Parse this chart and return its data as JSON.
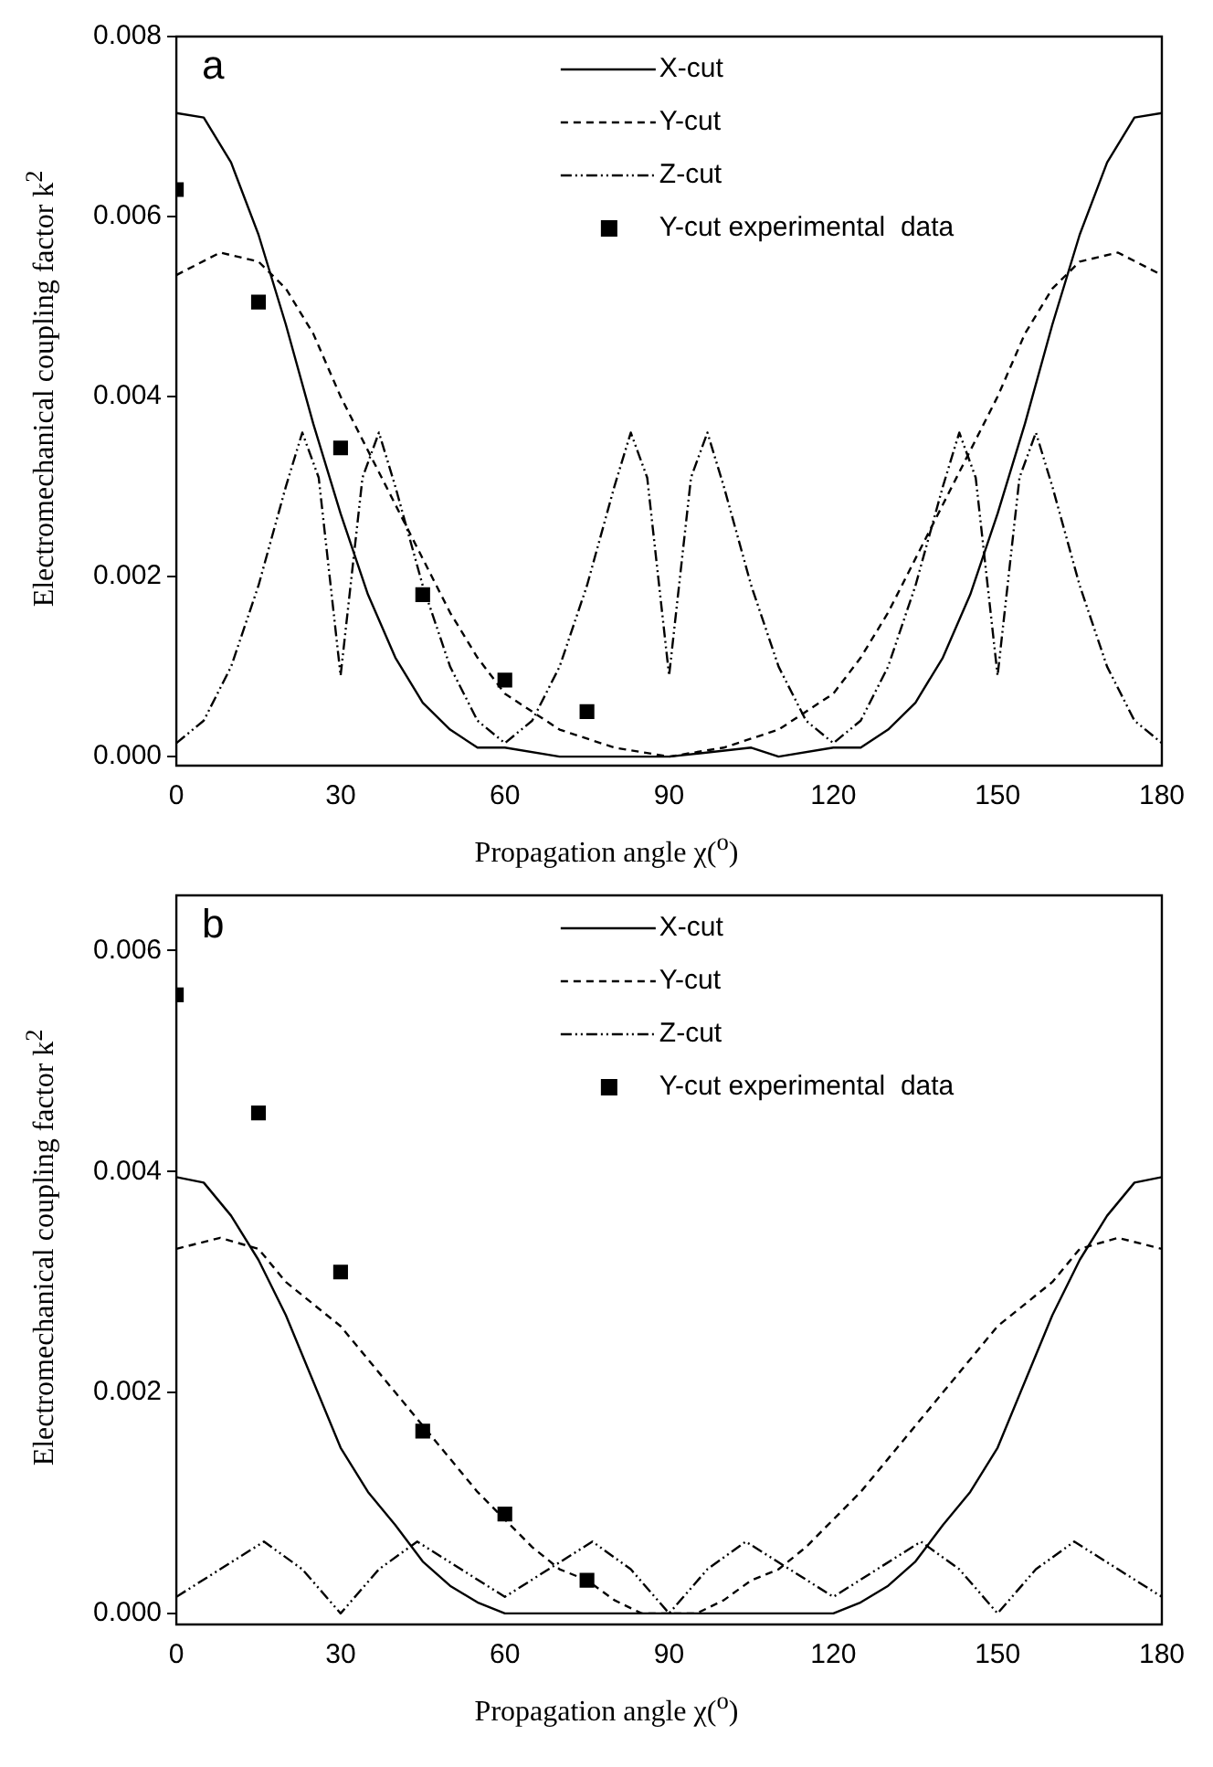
{
  "chart_data": [
    {
      "type": "line",
      "annotations": [
        "a"
      ],
      "xlabel": "Propagation angle χ($^{o}$)",
      "ylabel": "Electromechanical coupling factor  k$^{2}$",
      "xlim": [
        0,
        180
      ],
      "xticks": [
        0,
        30,
        60,
        90,
        120,
        150,
        180
      ],
      "ylim": [
        -0.0001,
        0.008
      ],
      "yticks": [
        {
          "value": 0,
          "label": "0.000"
        },
        {
          "value": 0.002,
          "label": "0.002"
        },
        {
          "value": 0.004,
          "label": "0.004"
        },
        {
          "value": 0.006,
          "label": "0.006"
        },
        {
          "value": 0.008,
          "label": "0.008"
        }
      ],
      "grid": false,
      "legend": "top",
      "series": [
        {
          "name": "X-cut",
          "line_style": "solid",
          "color": "#000000",
          "x": [
            0,
            5,
            10,
            15,
            20,
            25,
            30,
            35,
            40,
            45,
            50,
            55,
            60,
            70,
            90,
            105,
            110,
            120,
            125,
            130,
            135,
            140,
            145,
            150,
            155,
            160,
            165,
            170,
            175,
            180
          ],
          "values": [
            0.00715,
            0.0071,
            0.0066,
            0.0058,
            0.0048,
            0.0037,
            0.0027,
            0.0018,
            0.0011,
            0.0006,
            0.0003,
            0.0001,
            0.0001,
            0,
            0,
            0.0001,
            0,
            0.0001,
            0.0001,
            0.0003,
            0.0006,
            0.0011,
            0.0018,
            0.0027,
            0.0037,
            0.0048,
            0.0058,
            0.0066,
            0.0071,
            0.00715
          ]
        },
        {
          "name": "Y-cut",
          "line_style": "dashed",
          "color": "#000000",
          "x": [
            0,
            8,
            15,
            20,
            25,
            30,
            35,
            40,
            45,
            50,
            55,
            60,
            70,
            80,
            90,
            100,
            110,
            120,
            125,
            130,
            135,
            140,
            145,
            150,
            155,
            160,
            165,
            172,
            180
          ],
          "values": [
            0.00535,
            0.0056,
            0.0055,
            0.0052,
            0.0047,
            0.004,
            0.0034,
            0.0028,
            0.0022,
            0.0016,
            0.0011,
            0.0007,
            0.0003,
            0.0001,
            0,
            0.0001,
            0.0003,
            0.0007,
            0.0011,
            0.0016,
            0.0022,
            0.0028,
            0.0034,
            0.004,
            0.0047,
            0.0052,
            0.0055,
            0.0056,
            0.00535
          ]
        },
        {
          "name": "Z-cut",
          "line_style": "dashdotdot",
          "color": "#000000",
          "x": [
            0,
            5,
            10,
            15,
            20,
            23,
            26,
            28,
            30,
            32,
            34,
            37,
            40,
            45,
            50,
            55,
            60,
            65,
            70,
            75,
            80,
            83,
            86,
            88,
            90,
            92,
            94,
            97,
            100,
            105,
            110,
            115,
            120,
            125,
            130,
            135,
            140,
            143,
            146,
            148,
            150,
            152,
            154,
            157,
            160,
            165,
            170,
            175,
            180
          ],
          "values": [
            0.00015,
            0.0004,
            0.001,
            0.0019,
            0.003,
            0.0036,
            0.0031,
            0.002,
            0.0009,
            0.002,
            0.0031,
            0.0036,
            0.003,
            0.0019,
            0.001,
            0.0004,
            0.00015,
            0.0004,
            0.001,
            0.0019,
            0.003,
            0.0036,
            0.0031,
            0.002,
            0.0009,
            0.002,
            0.0031,
            0.0036,
            0.003,
            0.0019,
            0.001,
            0.0004,
            0.00015,
            0.0004,
            0.001,
            0.0019,
            0.003,
            0.0036,
            0.0031,
            0.002,
            0.0009,
            0.002,
            0.0031,
            0.0036,
            0.003,
            0.0019,
            0.001,
            0.0004,
            0.00015
          ]
        },
        {
          "name": "Y-cut experimental  data",
          "type": "scatter",
          "marker": "square",
          "color": "#000000",
          "x": [
            0,
            15,
            30,
            45,
            60,
            75
          ],
          "values": [
            0.0063,
            0.00505,
            0.00343,
            0.0018,
            0.00085,
            0.0005
          ]
        }
      ]
    },
    {
      "type": "line",
      "annotations": [
        "b"
      ],
      "xlabel": "Propagation angle χ($^{o}$)",
      "ylabel": "Electromechanical coupling factor  k$^{2}$",
      "xlim": [
        0,
        180
      ],
      "xticks": [
        0,
        30,
        60,
        90,
        120,
        150,
        180
      ],
      "ylim": [
        -0.0001,
        0.0065
      ],
      "yticks": [
        {
          "value": 0,
          "label": "0.000"
        },
        {
          "value": 0.002,
          "label": "0.002"
        },
        {
          "value": 0.004,
          "label": "0.004"
        },
        {
          "value": 0.006,
          "label": "0.006"
        }
      ],
      "grid": false,
      "legend": "top",
      "series": [
        {
          "name": "X-cut",
          "line_style": "solid",
          "color": "#000000",
          "x": [
            0,
            5,
            10,
            15,
            20,
            25,
            30,
            35,
            40,
            45,
            50,
            55,
            60,
            70,
            90,
            110,
            120,
            125,
            130,
            135,
            140,
            145,
            150,
            155,
            160,
            165,
            170,
            175,
            180
          ],
          "values": [
            0.00395,
            0.0039,
            0.0036,
            0.0032,
            0.0027,
            0.0021,
            0.0015,
            0.0011,
            0.0008,
            0.00047,
            0.00025,
            0.0001,
            0,
            0,
            0,
            0,
            0,
            0.0001,
            0.00025,
            0.00047,
            0.0008,
            0.0011,
            0.0015,
            0.0021,
            0.0027,
            0.0032,
            0.0036,
            0.0039,
            0.00395
          ]
        },
        {
          "name": "Y-cut",
          "line_style": "dashed",
          "color": "#000000",
          "x": [
            0,
            8,
            15,
            20,
            30,
            40,
            45,
            50,
            55,
            60,
            65,
            70,
            75,
            80,
            85,
            90,
            95,
            100,
            105,
            110,
            115,
            120,
            125,
            130,
            135,
            140,
            150,
            160,
            165,
            172,
            180
          ],
          "values": [
            0.0033,
            0.0034,
            0.0033,
            0.003,
            0.0026,
            0.002,
            0.0017,
            0.0014,
            0.0011,
            0.00085,
            0.0006,
            0.0004,
            0.0003,
            0.00012,
            0,
            0,
            0,
            0.00012,
            0.0003,
            0.0004,
            0.0006,
            0.00085,
            0.0011,
            0.0014,
            0.0017,
            0.002,
            0.0026,
            0.003,
            0.0033,
            0.0034,
            0.0033
          ]
        },
        {
          "name": "Z-cut",
          "line_style": "dashdotdot",
          "color": "#000000",
          "x": [
            0,
            8,
            16,
            23,
            30,
            37,
            44,
            52,
            60,
            68,
            76,
            83,
            90,
            97,
            104,
            112,
            120,
            128,
            136,
            143,
            150,
            157,
            164,
            172,
            180
          ],
          "values": [
            0.00015,
            0.0004,
            0.00065,
            0.0004,
            0,
            0.0004,
            0.00065,
            0.0004,
            0.00015,
            0.0004,
            0.00065,
            0.0004,
            0,
            0.0004,
            0.00065,
            0.0004,
            0.00015,
            0.0004,
            0.00065,
            0.0004,
            0,
            0.0004,
            0.00065,
            0.0004,
            0.00015
          ]
        },
        {
          "name": "Y-cut experimental  data",
          "type": "scatter",
          "marker": "square",
          "color": "#000000",
          "x": [
            0,
            15,
            30,
            45,
            60,
            75
          ],
          "values": [
            0.0056,
            0.00453,
            0.00309,
            0.00165,
            0.0009,
            0.0003
          ]
        }
      ]
    }
  ]
}
